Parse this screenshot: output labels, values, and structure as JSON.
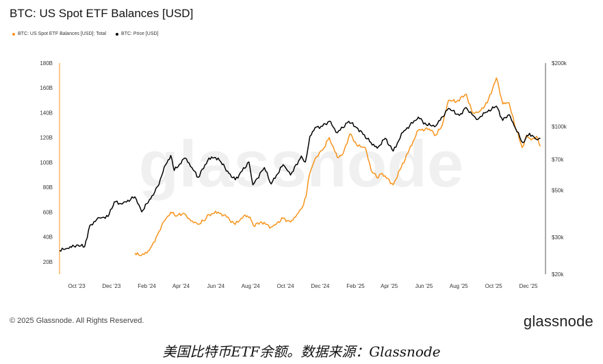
{
  "title": "BTC: US Spot ETF Balances [USD]",
  "footer": {
    "copyright": "© 2025 Glassnode. All Rights Reserved.",
    "logo": "glassnode"
  },
  "caption": "美国比特币ETF余额。数据来源：Glassnode",
  "chart_data": {
    "type": "line",
    "x_ticks": [
      "Oct '23",
      "Dec '23",
      "Feb '24",
      "Apr '24",
      "Jun '24",
      "Aug '24",
      "Oct '24",
      "Dec '24",
      "Feb '25",
      "Apr '25",
      "Jun '25",
      "Aug '25",
      "Oct '25",
      "Dec '25"
    ],
    "x_range": [
      "2023-09-01",
      "2025-12-31"
    ],
    "y_left": {
      "ticks": [
        "20B",
        "40B",
        "60B",
        "80B",
        "100B",
        "120B",
        "140B",
        "160B",
        "180B"
      ],
      "min": 10,
      "max": 180
    },
    "y_right": {
      "ticks": [
        "$20k",
        "$30k",
        "$50k",
        "$70k",
        "$100k",
        "$200k"
      ],
      "tick_values": [
        20000,
        30000,
        50000,
        70000,
        100000,
        200000
      ],
      "scale": "log",
      "min": 20000,
      "max": 200000
    },
    "grid": false,
    "legend_position": "top-left",
    "watermark": "glassnode",
    "colors": {
      "balance": "#f7931a",
      "price": "#000000"
    },
    "series": [
      {
        "name": "BTC: US Spot ETF Balances [USD]: Total",
        "axis": "left",
        "color": "#f7931a",
        "points": [
          [
            "2024-01-11",
            27
          ],
          [
            "2024-01-20",
            25
          ],
          [
            "2024-02-01",
            27
          ],
          [
            "2024-02-10",
            33
          ],
          [
            "2024-02-20",
            42
          ],
          [
            "2024-03-01",
            52
          ],
          [
            "2024-03-14",
            60
          ],
          [
            "2024-03-25",
            57
          ],
          [
            "2024-04-05",
            59
          ],
          [
            "2024-04-18",
            53
          ],
          [
            "2024-05-01",
            50
          ],
          [
            "2024-05-10",
            53
          ],
          [
            "2024-05-20",
            58
          ],
          [
            "2024-06-05",
            60
          ],
          [
            "2024-06-20",
            56
          ],
          [
            "2024-07-05",
            50
          ],
          [
            "2024-07-20",
            57
          ],
          [
            "2024-07-31",
            56
          ],
          [
            "2024-08-06",
            49
          ],
          [
            "2024-08-20",
            52
          ],
          [
            "2024-09-06",
            48
          ],
          [
            "2024-09-16",
            51
          ],
          [
            "2024-09-27",
            55
          ],
          [
            "2024-10-10",
            52
          ],
          [
            "2024-10-21",
            58
          ],
          [
            "2024-10-31",
            64
          ],
          [
            "2024-11-06",
            72
          ],
          [
            "2024-11-12",
            90
          ],
          [
            "2024-11-22",
            103
          ],
          [
            "2024-12-05",
            110
          ],
          [
            "2024-12-17",
            120
          ],
          [
            "2024-12-31",
            104
          ],
          [
            "2025-01-10",
            107
          ],
          [
            "2025-01-22",
            123
          ],
          [
            "2025-02-05",
            113
          ],
          [
            "2025-02-18",
            112
          ],
          [
            "2025-02-28",
            94
          ],
          [
            "2025-03-10",
            88
          ],
          [
            "2025-03-20",
            91
          ],
          [
            "2025-04-08",
            82
          ],
          [
            "2025-04-22",
            96
          ],
          [
            "2025-05-06",
            110
          ],
          [
            "2025-05-22",
            126
          ],
          [
            "2025-06-10",
            127
          ],
          [
            "2025-06-22",
            122
          ],
          [
            "2025-07-03",
            130
          ],
          [
            "2025-07-14",
            150
          ],
          [
            "2025-07-28",
            149
          ],
          [
            "2025-08-14",
            155
          ],
          [
            "2025-08-25",
            140
          ],
          [
            "2025-09-06",
            141
          ],
          [
            "2025-09-20",
            148
          ],
          [
            "2025-10-06",
            168
          ],
          [
            "2025-10-17",
            147
          ],
          [
            "2025-10-28",
            148
          ],
          [
            "2025-11-06",
            132
          ],
          [
            "2025-11-20",
            112
          ],
          [
            "2025-11-28",
            122
          ],
          [
            "2025-12-06",
            118
          ],
          [
            "2025-12-15",
            121
          ],
          [
            "2025-12-22",
            113
          ]
        ]
      },
      {
        "name": "BTC: Price [USD]",
        "axis": "right",
        "color": "#000000",
        "points": [
          [
            "2023-09-01",
            25900
          ],
          [
            "2023-09-15",
            26500
          ],
          [
            "2023-10-01",
            27500
          ],
          [
            "2023-10-15",
            27000
          ],
          [
            "2023-10-24",
            34000
          ],
          [
            "2023-11-10",
            37000
          ],
          [
            "2023-11-25",
            37500
          ],
          [
            "2023-12-06",
            44000
          ],
          [
            "2023-12-20",
            43000
          ],
          [
            "2024-01-11",
            46500
          ],
          [
            "2024-01-23",
            39500
          ],
          [
            "2024-02-10",
            47000
          ],
          [
            "2024-02-20",
            52000
          ],
          [
            "2024-03-05",
            66000
          ],
          [
            "2024-03-14",
            73000
          ],
          [
            "2024-03-20",
            62000
          ],
          [
            "2024-04-08",
            71000
          ],
          [
            "2024-04-20",
            64000
          ],
          [
            "2024-05-01",
            57500
          ],
          [
            "2024-05-20",
            71000
          ],
          [
            "2024-06-05",
            71000
          ],
          [
            "2024-06-24",
            60000
          ],
          [
            "2024-07-05",
            56000
          ],
          [
            "2024-07-29",
            68000
          ],
          [
            "2024-08-05",
            53000
          ],
          [
            "2024-08-25",
            64000
          ],
          [
            "2024-09-06",
            53500
          ],
          [
            "2024-09-27",
            66000
          ],
          [
            "2024-10-10",
            59000
          ],
          [
            "2024-10-29",
            72500
          ],
          [
            "2024-11-05",
            68000
          ],
          [
            "2024-11-13",
            90000
          ],
          [
            "2024-11-22",
            99000
          ],
          [
            "2024-12-05",
            100500
          ],
          [
            "2024-12-17",
            106000
          ],
          [
            "2024-12-31",
            93500
          ],
          [
            "2025-01-20",
            106000
          ],
          [
            "2025-02-05",
            98000
          ],
          [
            "2025-02-28",
            84000
          ],
          [
            "2025-03-11",
            79000
          ],
          [
            "2025-03-25",
            88000
          ],
          [
            "2025-04-08",
            76500
          ],
          [
            "2025-04-25",
            94000
          ],
          [
            "2025-05-22",
            111000
          ],
          [
            "2025-06-05",
            102000
          ],
          [
            "2025-06-22",
            101000
          ],
          [
            "2025-07-14",
            122000
          ],
          [
            "2025-08-02",
            113000
          ],
          [
            "2025-08-14",
            123000
          ],
          [
            "2025-09-01",
            108000
          ],
          [
            "2025-09-18",
            117000
          ],
          [
            "2025-10-06",
            125000
          ],
          [
            "2025-10-17",
            107000
          ],
          [
            "2025-10-28",
            114000
          ],
          [
            "2025-11-06",
            101000
          ],
          [
            "2025-11-21",
            84000
          ],
          [
            "2025-12-03",
            93000
          ],
          [
            "2025-12-15",
            87000
          ],
          [
            "2025-12-22",
            88000
          ]
        ]
      }
    ]
  }
}
